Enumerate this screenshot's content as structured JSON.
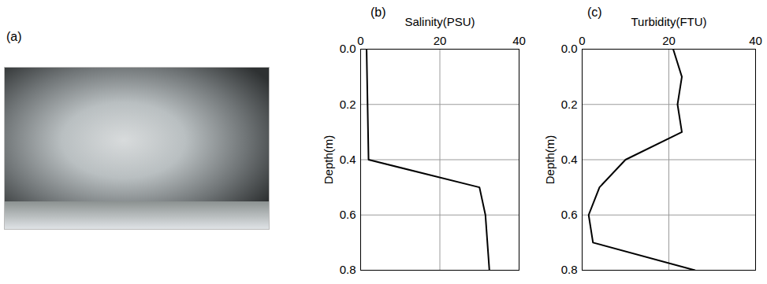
{
  "image": {
    "label": "(a)"
  },
  "chart_data": [
    {
      "type": "line",
      "panel": "(b)",
      "xlabel": "Salinity(PSU)",
      "ylabel": "Depth(m)",
      "x": [
        1.5,
        2,
        30,
        31.5,
        32.5
      ],
      "y": [
        0,
        0.4,
        0.5,
        0.6,
        0.8
      ],
      "color": "#000000",
      "xlim": [
        0,
        40
      ],
      "xticks": [
        0,
        20,
        40
      ],
      "ylim": [
        0,
        0.8
      ],
      "yticks": [
        {
          "value": 0,
          "label": "0.0"
        },
        {
          "value": 0.2,
          "label": "0.2"
        },
        {
          "value": 0.4,
          "label": "0.4"
        },
        {
          "value": 0.6,
          "label": "0.6"
        },
        {
          "value": 0.8,
          "label": "0.8"
        }
      ],
      "grid": true
    },
    {
      "type": "line",
      "panel": "(c)",
      "xlabel": "Turbidity(FTU)",
      "ylabel": "Depth(m)",
      "x": [
        21,
        23,
        22,
        23,
        10,
        4,
        1.5,
        2.5,
        26
      ],
      "y": [
        0,
        0.1,
        0.2,
        0.3,
        0.4,
        0.5,
        0.6,
        0.7,
        0.8
      ],
      "color": "#000000",
      "xlim": [
        0,
        40
      ],
      "xticks": [
        0,
        20,
        40
      ],
      "ylim": [
        0,
        0.8
      ],
      "yticks": [
        {
          "value": 0,
          "label": "0.0"
        },
        {
          "value": 0.2,
          "label": "0.2"
        },
        {
          "value": 0.4,
          "label": "0.4"
        },
        {
          "value": 0.6,
          "label": "0.6"
        },
        {
          "value": 0.8,
          "label": "0.8"
        }
      ],
      "grid": true
    }
  ]
}
